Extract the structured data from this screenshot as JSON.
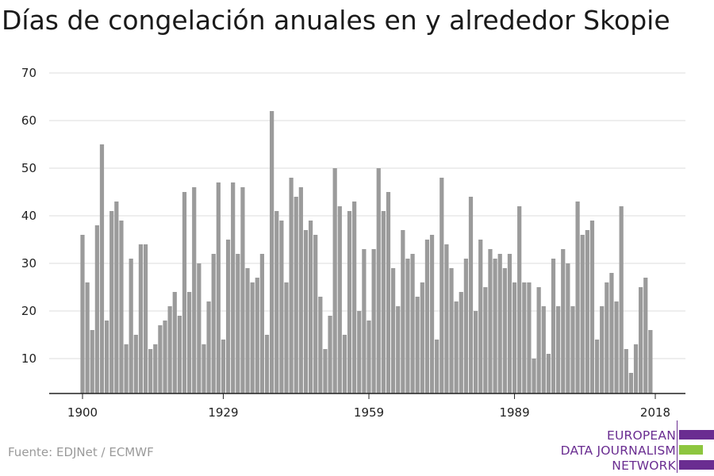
{
  "title": "Días de congelación anuales en y alrededor Skopie",
  "source": "Fuente: EDJNet / ECMWF",
  "logo": {
    "line1": "EUROPEAN",
    "line2": "DATA JOURNALISM",
    "line3": "NETWORK"
  },
  "colors": {
    "bar": "#9b9b9b",
    "grid": "#dddddd",
    "axis": "#222222",
    "logo_purple": "#6a2d91",
    "logo_green": "#8dc63f"
  },
  "chart_data": {
    "type": "bar",
    "title": "Días de congelación anuales en y alrededor Skopie",
    "xlabel": "",
    "ylabel": "",
    "x_start": 1900,
    "x_end": 2018,
    "x_ticks": [
      1900,
      1929,
      1959,
      1989,
      2018
    ],
    "y_ticks": [
      10,
      20,
      30,
      40,
      50,
      60,
      70
    ],
    "ylim": [
      3,
      70
    ],
    "grid": true,
    "values": [
      36,
      26,
      16,
      38,
      55,
      18,
      41,
      43,
      39,
      13,
      31,
      15,
      34,
      34,
      12,
      13,
      17,
      18,
      21,
      24,
      19,
      45,
      24,
      46,
      30,
      13,
      22,
      32,
      47,
      14,
      35,
      47,
      32,
      46,
      29,
      26,
      27,
      32,
      15,
      62,
      41,
      39,
      26,
      48,
      44,
      46,
      37,
      39,
      36,
      23,
      12,
      19,
      50,
      42,
      15,
      41,
      43,
      20,
      33,
      18,
      33,
      50,
      41,
      45,
      29,
      21,
      37,
      31,
      32,
      23,
      26,
      35,
      36,
      14,
      48,
      34,
      29,
      22,
      24,
      31,
      44,
      20,
      35,
      25,
      33,
      31,
      32,
      29,
      32,
      26,
      42,
      26,
      26,
      10,
      25,
      21,
      11,
      31,
      21,
      33,
      30,
      21,
      43,
      36,
      37,
      39,
      14,
      21,
      26,
      28,
      22,
      42,
      12,
      7,
      13,
      25,
      27,
      16
    ]
  }
}
